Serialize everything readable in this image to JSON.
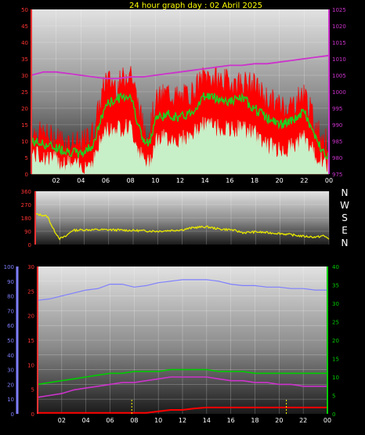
{
  "title": "24 hour graph day : 02 Abril 2025",
  "compass_labels": [
    "N",
    "W",
    "S",
    "E",
    "N"
  ],
  "colors": {
    "title": "#ffff00",
    "wind_gust": "#ff0000",
    "wind_avg": "#22cc22",
    "wind_min": "#c8f0c8",
    "pressure": "#cc33cc",
    "direction": "#e8e800",
    "humidity": "#7f7fff",
    "rain": "#ff0000",
    "temp": "#00cc00",
    "dewpoint": "#cc33cc",
    "axis_left": "#ff3333",
    "axis_right_pressure": "#cc33cc",
    "axis_right_temp": "#00cc00",
    "axis_humidity": "#7f7fff",
    "tick_labels": "#ffffff"
  },
  "chart_data": [
    {
      "type": "line",
      "name": "wind-pressure",
      "x_tick_labels": [
        "02",
        "04",
        "06",
        "08",
        "10",
        "12",
        "14",
        "16",
        "18",
        "20",
        "22",
        "00"
      ],
      "y_left_ticks": [
        "0",
        "5",
        "10",
        "15",
        "20",
        "25",
        "30",
        "35",
        "40",
        "45",
        "50"
      ],
      "y_right_ticks": [
        "975",
        "980",
        "985",
        "990",
        "995",
        "1000",
        "1005",
        "1010",
        "1015",
        "1020",
        "1025"
      ],
      "ylim_left": [
        0,
        50
      ],
      "ylim_right": [
        975,
        1025
      ],
      "grid": true,
      "series": [
        {
          "key": "gust",
          "axis": "left",
          "x": [
            0,
            1,
            2,
            3,
            4,
            5,
            5.5,
            6,
            7,
            8,
            8.5,
            9,
            9.5,
            10,
            11,
            12,
            13,
            14,
            15,
            16,
            17,
            18,
            19,
            20,
            21,
            22,
            23,
            24
          ],
          "values": [
            12,
            11,
            10,
            9,
            8,
            12,
            20,
            28,
            26,
            31,
            22,
            14,
            12,
            21,
            24,
            22,
            24,
            29,
            28,
            27,
            27,
            26,
            22,
            20,
            20,
            24,
            13,
            8
          ]
        },
        {
          "key": "avg",
          "axis": "left",
          "x": [
            0,
            1,
            2,
            3,
            4,
            5,
            5.5,
            6,
            7,
            8,
            8.5,
            9,
            9.5,
            10,
            11,
            12,
            13,
            14,
            15,
            16,
            17,
            18,
            19,
            20,
            21,
            22,
            23,
            24
          ],
          "values": [
            10,
            9,
            8,
            7,
            6,
            9,
            15,
            21,
            23,
            24,
            17,
            10,
            9,
            17,
            18,
            17,
            19,
            24,
            23,
            22,
            23,
            20,
            17,
            15,
            16,
            19,
            10,
            5
          ]
        },
        {
          "key": "min",
          "axis": "left",
          "x": [
            0,
            1,
            2,
            3,
            4,
            5,
            5.5,
            6,
            7,
            8,
            8.5,
            9,
            9.5,
            10,
            11,
            12,
            13,
            14,
            15,
            16,
            17,
            18,
            19,
            20,
            21,
            22,
            23,
            24
          ],
          "values": [
            6,
            5,
            4,
            3,
            2,
            4,
            9,
            13,
            14,
            14,
            9,
            4,
            3,
            10,
            11,
            10,
            12,
            15,
            14,
            13,
            14,
            12,
            9,
            7,
            8,
            11,
            5,
            2
          ]
        },
        {
          "key": "pressure",
          "axis": "right",
          "x": [
            0,
            1,
            2,
            3,
            4,
            5,
            6,
            7,
            8,
            9,
            10,
            11,
            12,
            13,
            14,
            15,
            16,
            17,
            18,
            19,
            20,
            21,
            22,
            23,
            24
          ],
          "values": [
            1005,
            1006,
            1006,
            1005.5,
            1005,
            1004.5,
            1004,
            1004,
            1004.5,
            1004.5,
            1005,
            1005.5,
            1006,
            1006.5,
            1007,
            1007.5,
            1008,
            1008,
            1008.5,
            1008.5,
            1009,
            1009.5,
            1010,
            1010.5,
            1011
          ]
        }
      ]
    },
    {
      "type": "line",
      "name": "wind-direction",
      "x_tick_labels": [
        "02",
        "04",
        "06",
        "08",
        "10",
        "12",
        "14",
        "16",
        "18",
        "20",
        "22",
        "00"
      ],
      "y_left_ticks": [
        "0",
        "90",
        "180",
        "270",
        "360"
      ],
      "ylim": [
        0,
        360
      ],
      "grid": true,
      "series": [
        {
          "key": "direction",
          "x": [
            0,
            0.5,
            1,
            1.5,
            2,
            2.5,
            3,
            4,
            6,
            8,
            10,
            12,
            13,
            14,
            15,
            16,
            17,
            18,
            19,
            20,
            21,
            22,
            23,
            23.5,
            24
          ],
          "values": [
            205,
            200,
            190,
            100,
            40,
            55,
            95,
            100,
            100,
            95,
            90,
            100,
            115,
            120,
            105,
            100,
            80,
            85,
            80,
            75,
            65,
            55,
            50,
            60,
            40
          ]
        }
      ]
    },
    {
      "type": "line",
      "name": "temp-humidity-rain",
      "x_tick_labels": [
        "02",
        "04",
        "06",
        "08",
        "10",
        "12",
        "14",
        "16",
        "18",
        "20",
        "22",
        "00"
      ],
      "y_humidity_ticks": [
        "0",
        "10",
        "20",
        "30",
        "40",
        "50",
        "60",
        "70",
        "80",
        "90",
        "100"
      ],
      "y_rain_ticks": [
        "0",
        "5",
        "10",
        "15",
        "20",
        "25",
        "30"
      ],
      "y_temp_ticks": [
        "0",
        "5",
        "10",
        "15",
        "20",
        "25",
        "30",
        "35",
        "40"
      ],
      "ylim_humidity": [
        0,
        100
      ],
      "ylim_rain": [
        0,
        30
      ],
      "ylim_temp": [
        0,
        40
      ],
      "grid": true,
      "series": [
        {
          "key": "humidity",
          "axis": "humidity",
          "x": [
            0,
            1,
            2,
            3,
            4,
            5,
            6,
            7,
            8,
            9,
            10,
            11,
            12,
            13,
            14,
            15,
            16,
            17,
            18,
            19,
            20,
            21,
            22,
            23,
            24
          ],
          "values": [
            77,
            78,
            80,
            82,
            84,
            85,
            88,
            88,
            86,
            87,
            89,
            90,
            91,
            91,
            91,
            90,
            88,
            87,
            87,
            86,
            86,
            85,
            85,
            84,
            84
          ]
        },
        {
          "key": "temp",
          "axis": "temp",
          "x": [
            0,
            1,
            2,
            3,
            4,
            5,
            6,
            7,
            8,
            9,
            10,
            11,
            12,
            13,
            14,
            15,
            16,
            17,
            18,
            19,
            20,
            21,
            22,
            23,
            24
          ],
          "values": [
            8,
            8.5,
            9,
            9.5,
            10,
            10.5,
            11,
            11,
            11.5,
            11.5,
            11.5,
            12,
            12,
            12,
            12,
            11.5,
            11.5,
            11.5,
            11,
            11,
            11,
            11,
            11,
            11,
            11
          ]
        },
        {
          "key": "dewpoint",
          "axis": "temp",
          "x": [
            0,
            1,
            2,
            3,
            4,
            5,
            6,
            7,
            8,
            9,
            10,
            11,
            12,
            13,
            14,
            15,
            16,
            17,
            18,
            19,
            20,
            21,
            22,
            23,
            24
          ],
          "values": [
            4.5,
            5,
            5.5,
            6.5,
            7,
            7.5,
            8,
            8.5,
            8.5,
            9,
            9.5,
            10,
            10,
            10,
            10,
            9.5,
            9,
            9,
            8.5,
            8.5,
            8,
            8,
            7.5,
            7.5,
            7.5
          ]
        },
        {
          "key": "rain",
          "axis": "rain",
          "x": [
            0,
            9,
            10,
            11,
            12,
            13,
            14,
            15,
            16,
            17,
            18,
            19,
            20,
            21,
            22,
            23,
            24
          ],
          "values": [
            0.2,
            0.2,
            0.5,
            0.8,
            0.8,
            1.1,
            1.3,
            1.3,
            1.3,
            1.3,
            1.3,
            1.3,
            1.3,
            1.3,
            1.3,
            1.3,
            1.3
          ]
        }
      ]
    }
  ]
}
